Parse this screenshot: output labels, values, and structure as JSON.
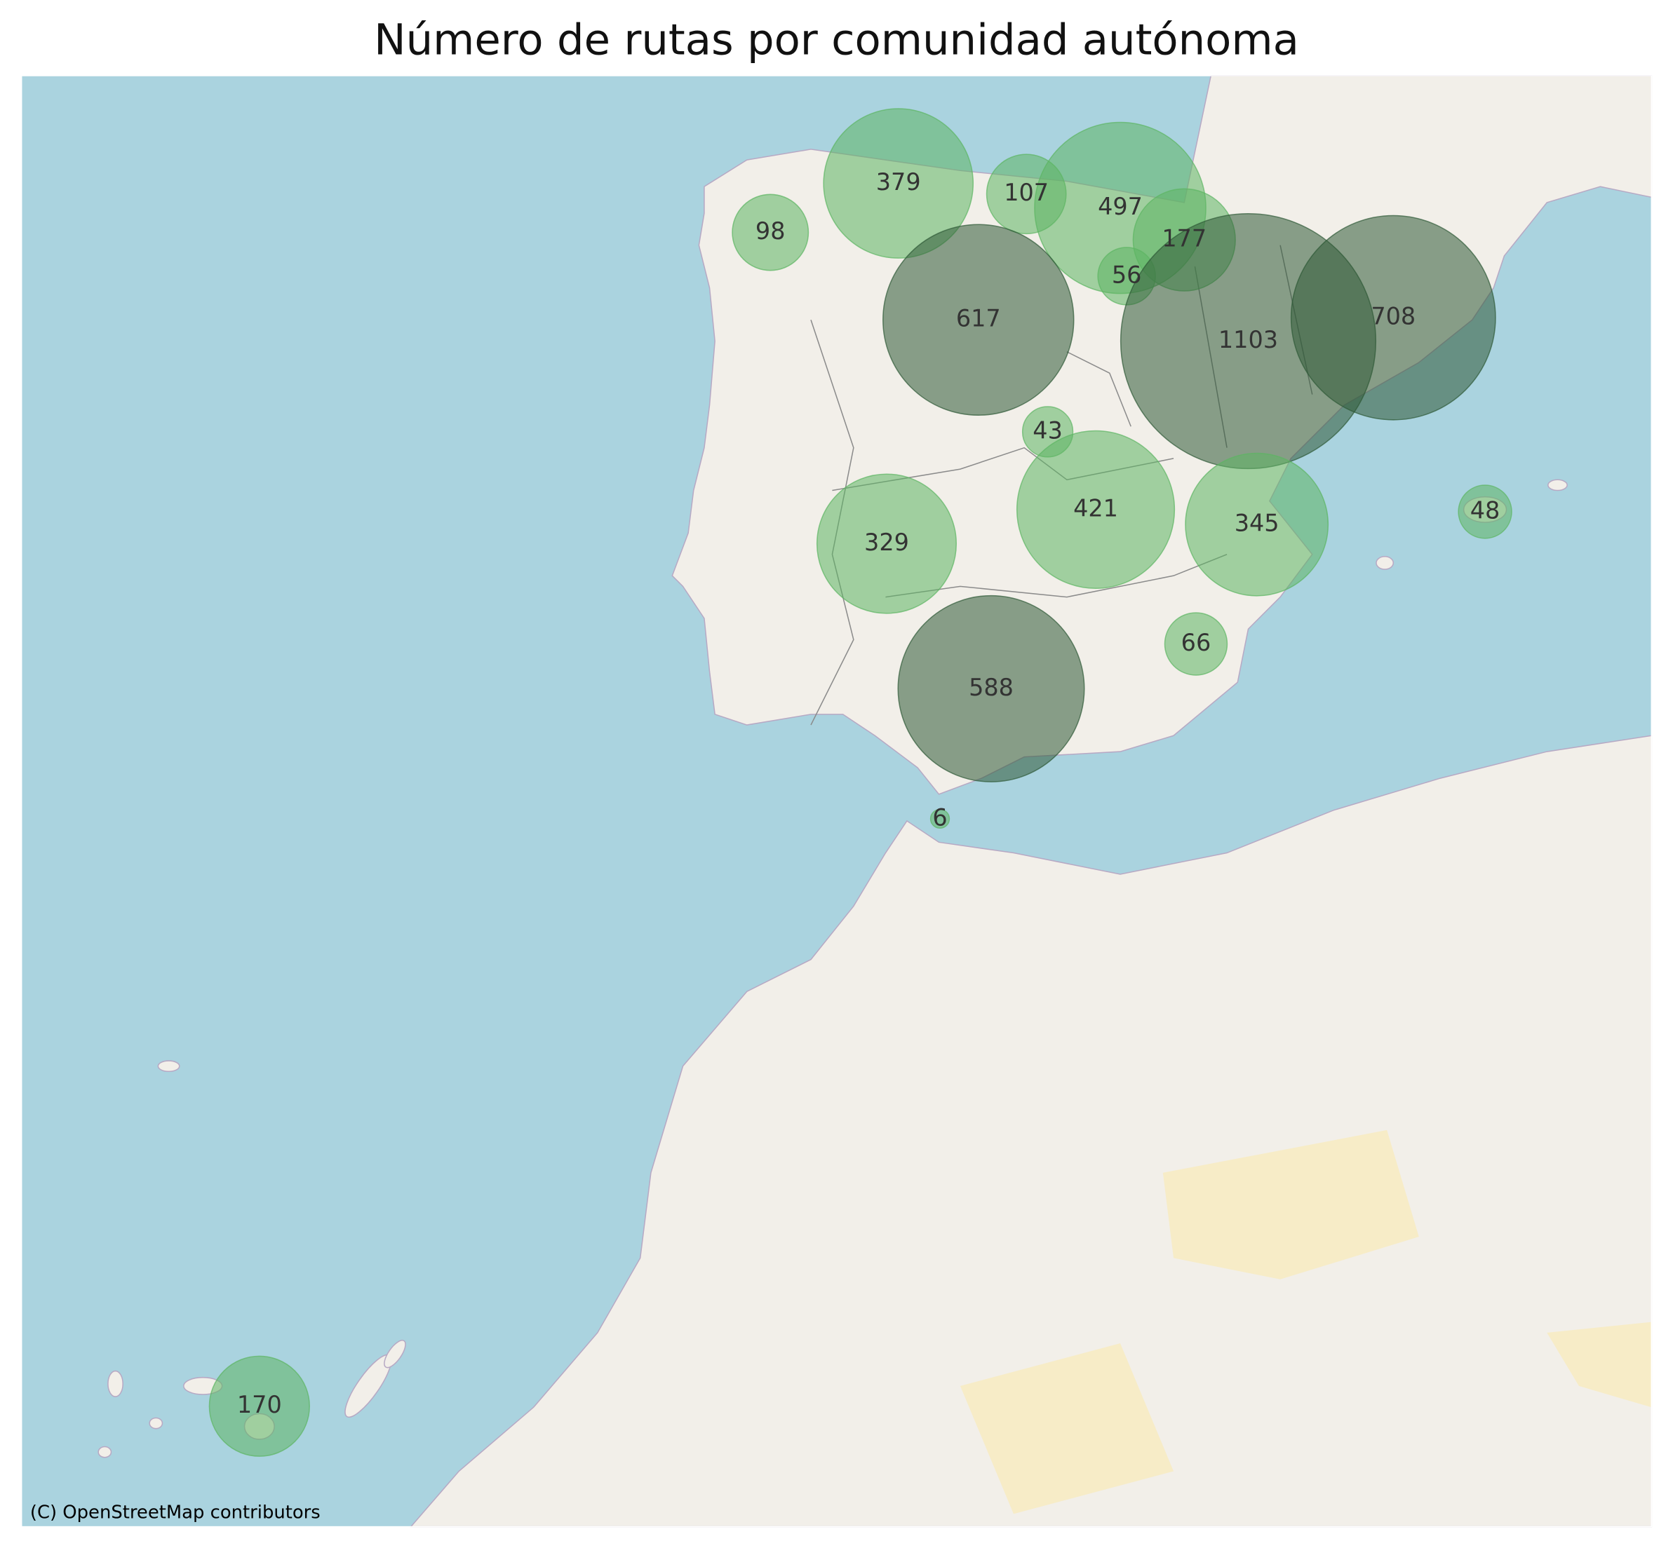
{
  "chart_data": {
    "type": "bubble",
    "title": "Número de rutas por comunidad autónoma",
    "attribution": "(C) OpenStreetMap contributors",
    "values": [
      379,
      107,
      497,
      98,
      177,
      56,
      617,
      1103,
      708,
      43,
      421,
      345,
      48,
      329,
      66,
      588,
      6,
      170
    ],
    "colors": [
      "#5cb563",
      "#5cb563",
      "#5cb563",
      "#5cb563",
      "#5cb563",
      "#5cb563",
      "#2f5a37",
      "#2f5a37",
      "#2f5a37",
      "#5cb563",
      "#5cb563",
      "#5cb563",
      "#5cb563",
      "#5cb563",
      "#5cb563",
      "#2f5a37",
      "#5cb563",
      "#5cb563"
    ]
  }
}
